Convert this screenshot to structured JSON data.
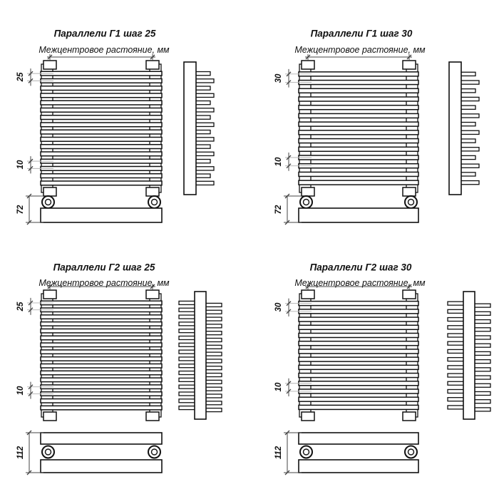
{
  "drawing": {
    "background": "#ffffff",
    "line_color": "#111111",
    "dim_color": "#444444",
    "leader_color": "#b3b3b3",
    "subtitle": "Межцентровое растояние, мм",
    "gap_dim": "10",
    "panels": [
      {
        "title": "Параллели Г1 шаг 25",
        "model": "Г1",
        "step": "25",
        "tubes": 16,
        "tube_rows": 1,
        "bottom_dim": "72"
      },
      {
        "title": "Параллели Г1 шаг 30",
        "model": "Г1",
        "step": "30",
        "tubes": 14,
        "tube_rows": 1,
        "bottom_dim": "72"
      },
      {
        "title": "Параллели Г2 шаг 25",
        "model": "Г2",
        "step": "25",
        "tubes": 16,
        "tube_rows": 2,
        "bottom_dim": "112"
      },
      {
        "title": "Параллели Г2 шаг 30",
        "model": "Г2",
        "step": "30",
        "tubes": 14,
        "tube_rows": 2,
        "bottom_dim": "112"
      }
    ]
  }
}
